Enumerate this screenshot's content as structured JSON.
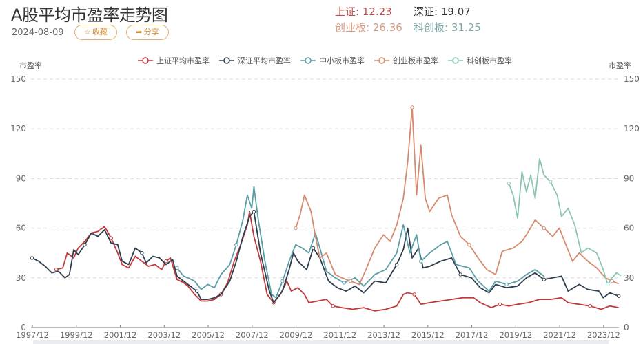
{
  "header": {
    "title": "A股平均市盈率走势图",
    "date": "2024-08-09",
    "favorite_label": "收藏",
    "favorite_icon": "star-outline-icon",
    "share_label": "分享",
    "share_icon": "share-arrow-icon"
  },
  "stats": {
    "sh": {
      "label": "上证:",
      "value": "12.23",
      "color": "#c0504d"
    },
    "sz": {
      "label": "深证:",
      "value": "19.07",
      "color": "#2f3e4e"
    },
    "cyb": {
      "label": "创业板:",
      "value": "26.36",
      "color": "#d58a6e"
    },
    "kcb": {
      "label": "科创板:",
      "value": "31.25",
      "color": "#6fa5a0"
    }
  },
  "chart_data": {
    "type": "line",
    "title": "A股平均市盈率走势图",
    "xlabel": "",
    "ylabel": "市盈率",
    "ylabel_right": "市盈率",
    "ylim": [
      0,
      150
    ],
    "yticks": [
      0,
      30,
      60,
      90,
      120,
      150
    ],
    "xticks": [
      "1997/12",
      "1999/12",
      "2001/12",
      "2003/12",
      "2005/12",
      "2007/12",
      "2009/12",
      "2011/12",
      "2013/12",
      "2015/12",
      "2017/12",
      "2019/12",
      "2021/12",
      "2023/12"
    ],
    "grid": "horizontal dashed",
    "legend_position": "top",
    "series": [
      {
        "name": "上证平均市盈率",
        "color": "#c0393b",
        "points": [
          [
            1999.0,
            35
          ],
          [
            1999.3,
            36
          ],
          [
            1999.5,
            45
          ],
          [
            1999.8,
            42
          ],
          [
            2000.0,
            48
          ],
          [
            2000.3,
            52
          ],
          [
            2000.6,
            57
          ],
          [
            2000.9,
            58
          ],
          [
            2001.2,
            61
          ],
          [
            2001.5,
            54
          ],
          [
            2001.8,
            45
          ],
          [
            2002.0,
            38
          ],
          [
            2002.3,
            36
          ],
          [
            2002.6,
            43
          ],
          [
            2002.9,
            40
          ],
          [
            2003.2,
            37
          ],
          [
            2003.5,
            38
          ],
          [
            2003.8,
            35
          ],
          [
            2004.0,
            40
          ],
          [
            2004.2,
            42
          ],
          [
            2004.5,
            29
          ],
          [
            2004.8,
            27
          ],
          [
            2005.0,
            25
          ],
          [
            2005.3,
            20
          ],
          [
            2005.6,
            16
          ],
          [
            2005.9,
            16
          ],
          [
            2006.2,
            17
          ],
          [
            2006.5,
            20
          ],
          [
            2006.8,
            27
          ],
          [
            2007.1,
            40
          ],
          [
            2007.4,
            50
          ],
          [
            2007.7,
            62
          ],
          [
            2007.8,
            70
          ],
          [
            2008.0,
            55
          ],
          [
            2008.3,
            40
          ],
          [
            2008.6,
            20
          ],
          [
            2008.9,
            15
          ],
          [
            2009.2,
            20
          ],
          [
            2009.5,
            28
          ],
          [
            2009.7,
            22
          ],
          [
            2010.0,
            24
          ],
          [
            2010.3,
            20
          ],
          [
            2010.5,
            15
          ],
          [
            2010.9,
            16
          ],
          [
            2011.3,
            17
          ],
          [
            2011.6,
            13
          ],
          [
            2012.0,
            12
          ],
          [
            2012.5,
            11
          ],
          [
            2013.0,
            12
          ],
          [
            2013.5,
            10
          ],
          [
            2014.0,
            11
          ],
          [
            2014.5,
            13
          ],
          [
            2014.8,
            20
          ],
          [
            2015.0,
            21
          ],
          [
            2015.3,
            20
          ],
          [
            2015.6,
            14
          ],
          [
            2016.0,
            15
          ],
          [
            2016.5,
            16
          ],
          [
            2017.0,
            17
          ],
          [
            2017.5,
            18
          ],
          [
            2018.0,
            18
          ],
          [
            2018.3,
            15
          ],
          [
            2018.8,
            12
          ],
          [
            2019.2,
            14
          ],
          [
            2019.6,
            13
          ],
          [
            2020.0,
            14
          ],
          [
            2020.5,
            15
          ],
          [
            2021.0,
            17
          ],
          [
            2021.5,
            17
          ],
          [
            2022.0,
            18
          ],
          [
            2022.3,
            15
          ],
          [
            2022.8,
            14
          ],
          [
            2023.3,
            13
          ],
          [
            2023.8,
            11
          ],
          [
            2024.2,
            13
          ],
          [
            2024.6,
            12
          ]
        ]
      },
      {
        "name": "深证平均市盈率",
        "color": "#2f3e4e",
        "points": [
          [
            1997.9,
            42
          ],
          [
            1998.2,
            40
          ],
          [
            1998.5,
            37
          ],
          [
            1998.8,
            33
          ],
          [
            1999.1,
            34
          ],
          [
            1999.4,
            30
          ],
          [
            1999.6,
            32
          ],
          [
            1999.8,
            47
          ],
          [
            2000.0,
            44
          ],
          [
            2000.3,
            50
          ],
          [
            2000.6,
            57
          ],
          [
            2000.9,
            55
          ],
          [
            2001.2,
            59
          ],
          [
            2001.5,
            51
          ],
          [
            2001.8,
            50
          ],
          [
            2002.0,
            40
          ],
          [
            2002.3,
            38
          ],
          [
            2002.6,
            48
          ],
          [
            2002.9,
            45
          ],
          [
            2003.1,
            39
          ],
          [
            2003.4,
            43
          ],
          [
            2003.7,
            42
          ],
          [
            2004.0,
            38
          ],
          [
            2004.3,
            41
          ],
          [
            2004.5,
            31
          ],
          [
            2004.8,
            28
          ],
          [
            2005.1,
            25
          ],
          [
            2005.4,
            22
          ],
          [
            2005.6,
            17
          ],
          [
            2005.9,
            17
          ],
          [
            2006.2,
            18
          ],
          [
            2006.5,
            20
          ],
          [
            2006.9,
            28
          ],
          [
            2007.2,
            40
          ],
          [
            2007.5,
            55
          ],
          [
            2007.8,
            67
          ],
          [
            2008.0,
            70
          ],
          [
            2008.3,
            45
          ],
          [
            2008.7,
            22
          ],
          [
            2008.9,
            15
          ],
          [
            2009.3,
            22
          ],
          [
            2009.6,
            35
          ],
          [
            2009.8,
            45
          ],
          [
            2010.0,
            40
          ],
          [
            2010.4,
            35
          ],
          [
            2010.7,
            48
          ],
          [
            2011.0,
            42
          ],
          [
            2011.4,
            28
          ],
          [
            2011.8,
            24
          ],
          [
            2012.2,
            22
          ],
          [
            2012.6,
            25
          ],
          [
            2013.0,
            21
          ],
          [
            2013.5,
            28
          ],
          [
            2014.0,
            27
          ],
          [
            2014.5,
            38
          ],
          [
            2014.8,
            47
          ],
          [
            2015.0,
            60
          ],
          [
            2015.2,
            42
          ],
          [
            2015.5,
            48
          ],
          [
            2015.7,
            36
          ],
          [
            2016.0,
            37
          ],
          [
            2016.5,
            40
          ],
          [
            2017.0,
            42
          ],
          [
            2017.4,
            32
          ],
          [
            2017.9,
            30
          ],
          [
            2018.3,
            24
          ],
          [
            2018.7,
            21
          ],
          [
            2019.0,
            26
          ],
          [
            2019.5,
            24
          ],
          [
            2020.0,
            25
          ],
          [
            2020.4,
            30
          ],
          [
            2020.8,
            33
          ],
          [
            2021.2,
            29
          ],
          [
            2021.6,
            30
          ],
          [
            2022.0,
            31
          ],
          [
            2022.3,
            22
          ],
          [
            2022.8,
            26
          ],
          [
            2023.2,
            23
          ],
          [
            2023.7,
            22
          ],
          [
            2023.9,
            18
          ],
          [
            2024.2,
            21
          ],
          [
            2024.6,
            19
          ]
        ]
      },
      {
        "name": "中小板市盈率",
        "color": "#5a9ea6",
        "points": [
          [
            2004.5,
            36
          ],
          [
            2004.8,
            31
          ],
          [
            2005.0,
            30
          ],
          [
            2005.3,
            28
          ],
          [
            2005.6,
            23
          ],
          [
            2005.9,
            26
          ],
          [
            2006.2,
            24
          ],
          [
            2006.5,
            32
          ],
          [
            2006.9,
            38
          ],
          [
            2007.2,
            50
          ],
          [
            2007.5,
            65
          ],
          [
            2007.7,
            80
          ],
          [
            2007.9,
            72
          ],
          [
            2008.0,
            85
          ],
          [
            2008.2,
            65
          ],
          [
            2008.5,
            40
          ],
          [
            2008.8,
            20
          ],
          [
            2009.0,
            18
          ],
          [
            2009.3,
            28
          ],
          [
            2009.6,
            40
          ],
          [
            2009.9,
            50
          ],
          [
            2010.2,
            48
          ],
          [
            2010.5,
            45
          ],
          [
            2010.8,
            57
          ],
          [
            2011.0,
            48
          ],
          [
            2011.3,
            34
          ],
          [
            2011.7,
            30
          ],
          [
            2012.1,
            27
          ],
          [
            2012.6,
            30
          ],
          [
            2013.0,
            25
          ],
          [
            2013.5,
            32
          ],
          [
            2014.0,
            35
          ],
          [
            2014.5,
            45
          ],
          [
            2014.8,
            62
          ],
          [
            2015.1,
            45
          ],
          [
            2015.4,
            56
          ],
          [
            2015.6,
            40
          ],
          [
            2016.0,
            45
          ],
          [
            2016.5,
            50
          ],
          [
            2016.8,
            52
          ],
          [
            2017.2,
            38
          ],
          [
            2017.8,
            36
          ],
          [
            2018.2,
            28
          ],
          [
            2018.7,
            22
          ],
          [
            2019.0,
            28
          ],
          [
            2019.5,
            26
          ],
          [
            2020.0,
            28
          ],
          [
            2020.4,
            32
          ],
          [
            2020.8,
            35
          ],
          [
            2021.2,
            31
          ]
        ]
      },
      {
        "name": "创业板市盈率",
        "color": "#d58a6e",
        "points": [
          [
            2009.9,
            60
          ],
          [
            2010.1,
            68
          ],
          [
            2010.3,
            80
          ],
          [
            2010.6,
            70
          ],
          [
            2010.8,
            55
          ],
          [
            2011.0,
            42
          ],
          [
            2011.3,
            45
          ],
          [
            2011.7,
            32
          ],
          [
            2012.0,
            30
          ],
          [
            2012.4,
            28
          ],
          [
            2012.8,
            26
          ],
          [
            2013.1,
            35
          ],
          [
            2013.5,
            48
          ],
          [
            2013.9,
            56
          ],
          [
            2014.2,
            52
          ],
          [
            2014.5,
            62
          ],
          [
            2014.8,
            78
          ],
          [
            2015.0,
            100
          ],
          [
            2015.2,
            133
          ],
          [
            2015.4,
            80
          ],
          [
            2015.6,
            110
          ],
          [
            2015.8,
            78
          ],
          [
            2016.0,
            70
          ],
          [
            2016.4,
            78
          ],
          [
            2016.8,
            80
          ],
          [
            2017.0,
            68
          ],
          [
            2017.4,
            55
          ],
          [
            2017.8,
            50
          ],
          [
            2018.2,
            42
          ],
          [
            2018.6,
            35
          ],
          [
            2019.0,
            32
          ],
          [
            2019.3,
            46
          ],
          [
            2019.8,
            48
          ],
          [
            2020.2,
            52
          ],
          [
            2020.5,
            58
          ],
          [
            2020.8,
            65
          ],
          [
            2021.2,
            60
          ],
          [
            2021.6,
            55
          ],
          [
            2021.9,
            60
          ],
          [
            2022.2,
            50
          ],
          [
            2022.5,
            40
          ],
          [
            2022.8,
            45
          ],
          [
            2023.2,
            40
          ],
          [
            2023.6,
            36
          ],
          [
            2024.0,
            30
          ],
          [
            2024.3,
            28
          ],
          [
            2024.6,
            26.36
          ]
        ]
      },
      {
        "name": "科创板市盈率",
        "color": "#8cc5b3",
        "points": [
          [
            2019.6,
            87
          ],
          [
            2019.8,
            80
          ],
          [
            2020.0,
            66
          ],
          [
            2020.2,
            94
          ],
          [
            2020.4,
            82
          ],
          [
            2020.6,
            92
          ],
          [
            2020.8,
            78
          ],
          [
            2021.0,
            102
          ],
          [
            2021.2,
            92
          ],
          [
            2021.5,
            88
          ],
          [
            2021.8,
            80
          ],
          [
            2022.0,
            67
          ],
          [
            2022.3,
            72
          ],
          [
            2022.6,
            62
          ],
          [
            2022.9,
            45
          ],
          [
            2023.2,
            48
          ],
          [
            2023.6,
            45
          ],
          [
            2023.9,
            35
          ],
          [
            2024.1,
            26
          ],
          [
            2024.3,
            30
          ],
          [
            2024.5,
            33
          ],
          [
            2024.7,
            31.25
          ]
        ]
      }
    ]
  },
  "axis": {
    "left_unit": "市盈率",
    "right_unit": "市盈率"
  }
}
